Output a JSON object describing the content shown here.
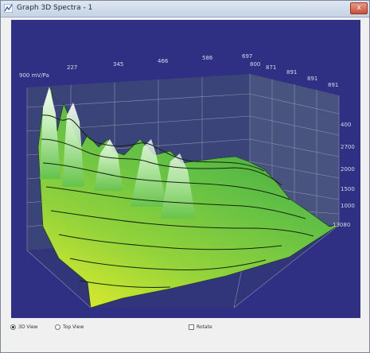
{
  "window": {
    "title": "Graph 3D Spectra - 1",
    "close_label": "x"
  },
  "plot": {
    "background": "#2f2f84",
    "z_axis_label": "900 mV/Pa",
    "top_ticks": [
      "227",
      "345",
      "466",
      "586",
      "697"
    ],
    "right_depth_ticks": [
      "800",
      "871",
      "891",
      "891",
      "891"
    ],
    "right_value_ticks": [
      "400",
      "2700",
      "2000",
      "1500",
      "1000",
      "13080"
    ]
  },
  "view_options": {
    "view_3d_label": "3D View",
    "view_3d_selected": true,
    "top_view_label": "Top View",
    "top_view_selected": false,
    "rotate_label": "Rotate",
    "rotate_checked": false
  }
}
